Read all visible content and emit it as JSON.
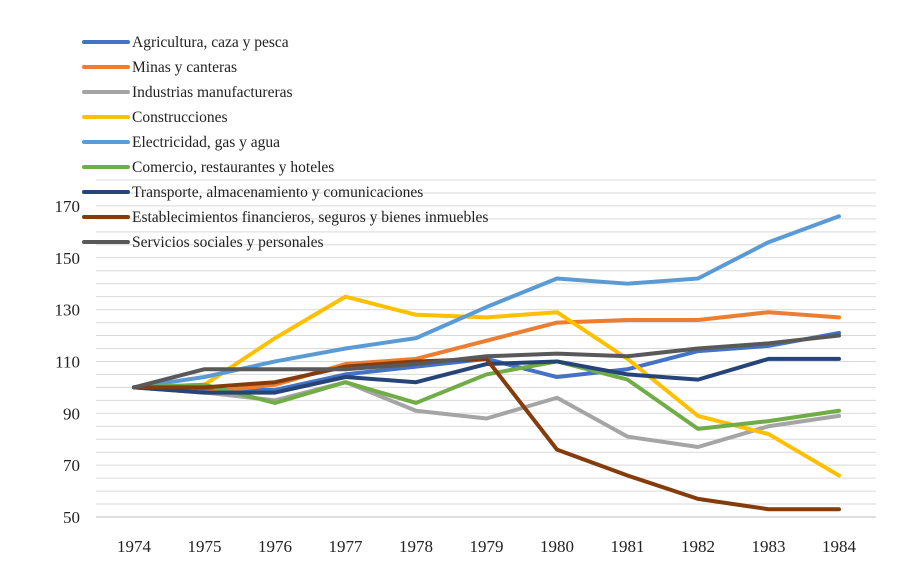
{
  "chart_data": {
    "type": "line",
    "title": "",
    "xlabel": "",
    "ylabel": "",
    "categories": [
      "1974",
      "1975",
      "1976",
      "1977",
      "1978",
      "1979",
      "1980",
      "1981",
      "1982",
      "1983",
      "1984"
    ],
    "ylim": [
      50,
      180
    ],
    "yticks": [
      50,
      70,
      90,
      110,
      130,
      150,
      170
    ],
    "grid": true,
    "legend_position": "top-left",
    "series": [
      {
        "name": "Agricultura, caza y pesca",
        "color": "#4472c4",
        "values": [
          100,
          99,
          99,
          105,
          108,
          111,
          104,
          107,
          114,
          116,
          121
        ]
      },
      {
        "name": "Minas y canteras",
        "color": "#ed7d31",
        "values": [
          100,
          98,
          101,
          109,
          111,
          118,
          125,
          126,
          126,
          129,
          127
        ]
      },
      {
        "name": "Industrias manufactureras",
        "color": "#a5a5a5",
        "values": [
          100,
          98,
          95,
          102,
          91,
          88,
          96,
          81,
          77,
          85,
          89
        ]
      },
      {
        "name": "Construcciones",
        "color": "#ffc000",
        "values": [
          100,
          101,
          119,
          135,
          128,
          127,
          129,
          111,
          89,
          82,
          66
        ]
      },
      {
        "name": "Electricidad, gas y agua",
        "color": "#5b9bd5",
        "values": [
          100,
          104,
          110,
          115,
          119,
          131,
          142,
          140,
          142,
          156,
          166
        ]
      },
      {
        "name": "Comercio, restaurantes y hoteles",
        "color": "#70ad47",
        "values": [
          100,
          101,
          94,
          102,
          94,
          105,
          110,
          103,
          84,
          87,
          91
        ]
      },
      {
        "name": "Transporte, almacenamiento y comunicaciones",
        "color": "#264478",
        "values": [
          100,
          98,
          98,
          104,
          102,
          109,
          110,
          105,
          103,
          111,
          111
        ]
      },
      {
        "name": "Establecimientos financieros, seguros y bienes inmuebles",
        "color": "#843c0c",
        "values": [
          100,
          100,
          102,
          108,
          110,
          111,
          76,
          66,
          57,
          53,
          53
        ]
      },
      {
        "name": "Servicios sociales y personales",
        "color": "#595959",
        "values": [
          100,
          107,
          107,
          107,
          109,
          112,
          113,
          112,
          115,
          117,
          120
        ]
      }
    ]
  }
}
